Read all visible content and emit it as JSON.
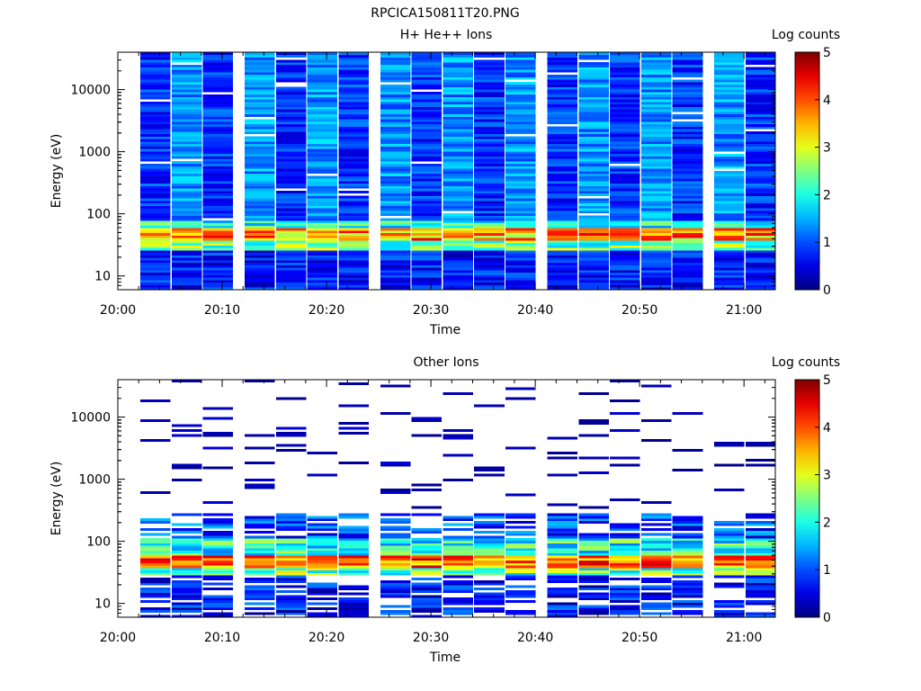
{
  "figure_title": "RPCICA150811T20.PNG",
  "chart_data": [
    {
      "type": "heatmap",
      "title": "H+ He++ Ions",
      "xlabel": "Time",
      "ylabel": "Energy (eV)",
      "x_ticks": [
        "20:00",
        "20:10",
        "20:20",
        "20:30",
        "20:40",
        "20:50",
        "21:00"
      ],
      "y_ticks": [
        "10",
        "100",
        "1000",
        "10000"
      ],
      "xlim": [
        "20:00",
        "21:03"
      ],
      "ylim": [
        6,
        40000
      ],
      "y_scale": "log",
      "colorbar": {
        "label": "Log counts",
        "ticks": [
          "0",
          "1",
          "2",
          "3",
          "4",
          "5"
        ],
        "range": [
          0,
          5
        ],
        "colormap": "jet"
      },
      "time_bins": [
        "20:02",
        "20:05",
        "20:08",
        "20:12",
        "20:15",
        "20:18",
        "20:21",
        "20:25",
        "20:28",
        "20:31",
        "20:34",
        "20:37",
        "20:41",
        "20:44",
        "20:47",
        "20:50",
        "20:53",
        "20:57",
        "21:00"
      ],
      "band_peaks": [
        {
          "energy_range": [
            36,
            60
          ],
          "log_counts_peak": 4.3
        },
        {
          "energy_range": [
            60,
            40000
          ],
          "log_counts_typical": 1.0
        },
        {
          "energy_range": [
            6,
            25
          ],
          "log_counts_typical": 0.6
        }
      ]
    },
    {
      "type": "heatmap",
      "title": "Other Ions",
      "xlabel": "Time",
      "ylabel": "Energy (eV)",
      "x_ticks": [
        "20:00",
        "20:10",
        "20:20",
        "20:30",
        "20:40",
        "20:50",
        "21:00"
      ],
      "y_ticks": [
        "10",
        "100",
        "1000",
        "10000"
      ],
      "xlim": [
        "20:00",
        "21:03"
      ],
      "ylim": [
        6,
        40000
      ],
      "y_scale": "log",
      "colorbar": {
        "label": "Log counts",
        "ticks": [
          "0",
          "1",
          "2",
          "3",
          "4",
          "5"
        ],
        "range": [
          0,
          5
        ],
        "colormap": "jet"
      },
      "time_bins": [
        "20:02",
        "20:05",
        "20:08",
        "20:12",
        "20:15",
        "20:18",
        "20:21",
        "20:25",
        "20:28",
        "20:31",
        "20:34",
        "20:37",
        "20:41",
        "20:44",
        "20:47",
        "20:50",
        "20:53",
        "20:57",
        "21:00"
      ],
      "band_peaks": [
        {
          "energy_range": [
            35,
            65
          ],
          "log_counts_peak": 4.6
        },
        {
          "energy_range": [
            65,
            300
          ],
          "log_counts_typical": 1.5
        },
        {
          "energy_range": [
            300,
            40000
          ],
          "log_counts_typical": 0.2
        }
      ]
    }
  ]
}
